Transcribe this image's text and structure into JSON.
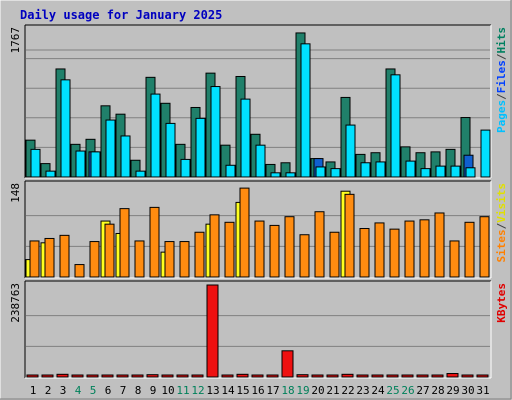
{
  "title": "Daily usage for January 2025",
  "chart_data": {
    "type": "bar",
    "title": "Daily usage for January 2025",
    "categories": [
      "1",
      "2",
      "3",
      "4",
      "5",
      "6",
      "7",
      "8",
      "9",
      "10",
      "11",
      "12",
      "13",
      "14",
      "15",
      "16",
      "17",
      "18",
      "19",
      "20",
      "21",
      "22",
      "23",
      "24",
      "25",
      "26",
      "27",
      "28",
      "29",
      "30",
      "31"
    ],
    "weekend_days": [
      4,
      5,
      11,
      12,
      18,
      19,
      25,
      26
    ],
    "panels": [
      {
        "id": "hits",
        "ymax": 1767,
        "ymax_label": "1767",
        "legend": [
          {
            "text": "Pages",
            "color": "#00c0ff"
          },
          {
            "text": "/",
            "color": "#404040"
          },
          {
            "text": "Files",
            "color": "#0040ff"
          },
          {
            "text": "/",
            "color": "#404040"
          },
          {
            "text": "Hits",
            "color": "#008060"
          }
        ],
        "series": [
          {
            "name": "Hits",
            "color": "#20806a",
            "values": [
              440,
              160,
              1290,
              390,
              450,
              850,
              750,
              200,
              1190,
              880,
              390,
              830,
              1240,
              380,
              1200,
              510,
              150,
              170,
              1720,
              220,
              180,
              950,
              270,
              290,
              1290,
              360,
              290,
              300,
              330,
              710,
              0
            ]
          },
          {
            "name": "Files",
            "color": "#1060d0",
            "values": [
              0,
              0,
              0,
              0,
              300,
              0,
              0,
              0,
              0,
              0,
              0,
              0,
              0,
              0,
              0,
              0,
              0,
              0,
              0,
              220,
              0,
              0,
              0,
              0,
              0,
              0,
              0,
              0,
              0,
              260,
              0
            ]
          },
          {
            "name": "Pages",
            "color": "#00e0ff",
            "values": [
              330,
              70,
              1160,
              310,
              300,
              680,
              490,
              70,
              990,
              640,
              210,
              700,
              1080,
              140,
              930,
              380,
              50,
              50,
              1590,
              120,
              100,
              620,
              170,
              180,
              1220,
              190,
              100,
              130,
              130,
              110,
              560
            ]
          }
        ]
      },
      {
        "id": "visits",
        "ymax": 148,
        "ymax_label": "148",
        "legend": [
          {
            "text": "Sites",
            "color": "#ff8000"
          },
          {
            "text": "/",
            "color": "#404040"
          },
          {
            "text": "Visits",
            "color": "#e0e000"
          }
        ],
        "series": [
          {
            "name": "Visits",
            "color": "#ffff20",
            "values": [
              28,
              55,
              0,
              0,
              0,
              90,
              70,
              0,
              0,
              40,
              0,
              0,
              85,
              0,
              120,
              0,
              0,
              0,
              0,
              0,
              0,
              138,
              0,
              0,
              0,
              0,
              0,
              0,
              0,
              0,
              0
            ]
          },
          {
            "name": "Sites",
            "color": "#ff8c10",
            "values": [
              58,
              62,
              67,
              20,
              57,
              85,
              110,
              58,
              112,
              57,
              57,
              72,
              100,
              88,
              143,
              90,
              83,
              97,
              68,
              105,
              72,
              133,
              78,
              87,
              77,
              90,
              92,
              103,
              58,
              88,
              97
            ]
          }
        ]
      },
      {
        "id": "kbytes",
        "ymax": 238763,
        "ymax_label": "238763",
        "legend": [
          {
            "text": "KBytes",
            "color": "#e00000"
          }
        ],
        "series": [
          {
            "name": "KBytes",
            "color": "#ee1010",
            "values": [
              5000,
              3000,
              7000,
              3000,
              3000,
              5000,
              5000,
              3000,
              6000,
              5000,
              3000,
              5000,
              238763,
              4000,
              7000,
              5000,
              2000,
              68000,
              6000,
              4000,
              3000,
              7000,
              4000,
              5000,
              4000,
              4000,
              5000,
              5000,
              9000,
              4000,
              5000
            ]
          }
        ]
      }
    ]
  }
}
